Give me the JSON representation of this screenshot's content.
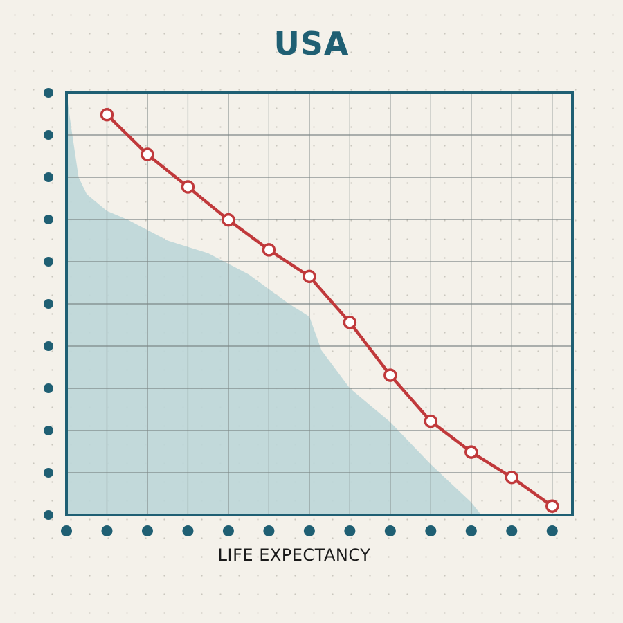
{
  "chart_data": {
    "type": "line",
    "title": "USA",
    "xlabel": "LIFE EXPECTANCY",
    "ylabel": "",
    "x": [
      1,
      2,
      3,
      4,
      5,
      6,
      7,
      8,
      9,
      10,
      11,
      12
    ],
    "xlim": [
      0,
      12.5
    ],
    "ylim": [
      0,
      10
    ],
    "series": [
      {
        "type": "line",
        "values": [
          9.48,
          8.54,
          7.77,
          6.99,
          6.28,
          5.65,
          4.56,
          3.31,
          2.22,
          1.49,
          0.89,
          0.21
        ]
      },
      {
        "type": "area",
        "points": [
          [
            0,
            10
          ],
          [
            0.1,
            9.3
          ],
          [
            0.3,
            8.0
          ],
          [
            0.5,
            7.6
          ],
          [
            1,
            7.2
          ],
          [
            1.5,
            7.0
          ],
          [
            2.5,
            6.5
          ],
          [
            3.5,
            6.2
          ],
          [
            4.5,
            5.7
          ],
          [
            5.5,
            5.0
          ],
          [
            6,
            4.7
          ],
          [
            6.3,
            3.9
          ],
          [
            7,
            3.0
          ],
          [
            8,
            2.2
          ],
          [
            9,
            1.2
          ],
          [
            10,
            0.3
          ],
          [
            10.25,
            0
          ]
        ]
      }
    ],
    "colors": {
      "line": "#c0393b",
      "area": "#bcd6d8",
      "frame": "#1f5f73",
      "grid": "#7d8786",
      "tick_dot": "#1f5f73"
    },
    "grid": true,
    "x_tick_count": 13,
    "y_tick_count": 11
  }
}
